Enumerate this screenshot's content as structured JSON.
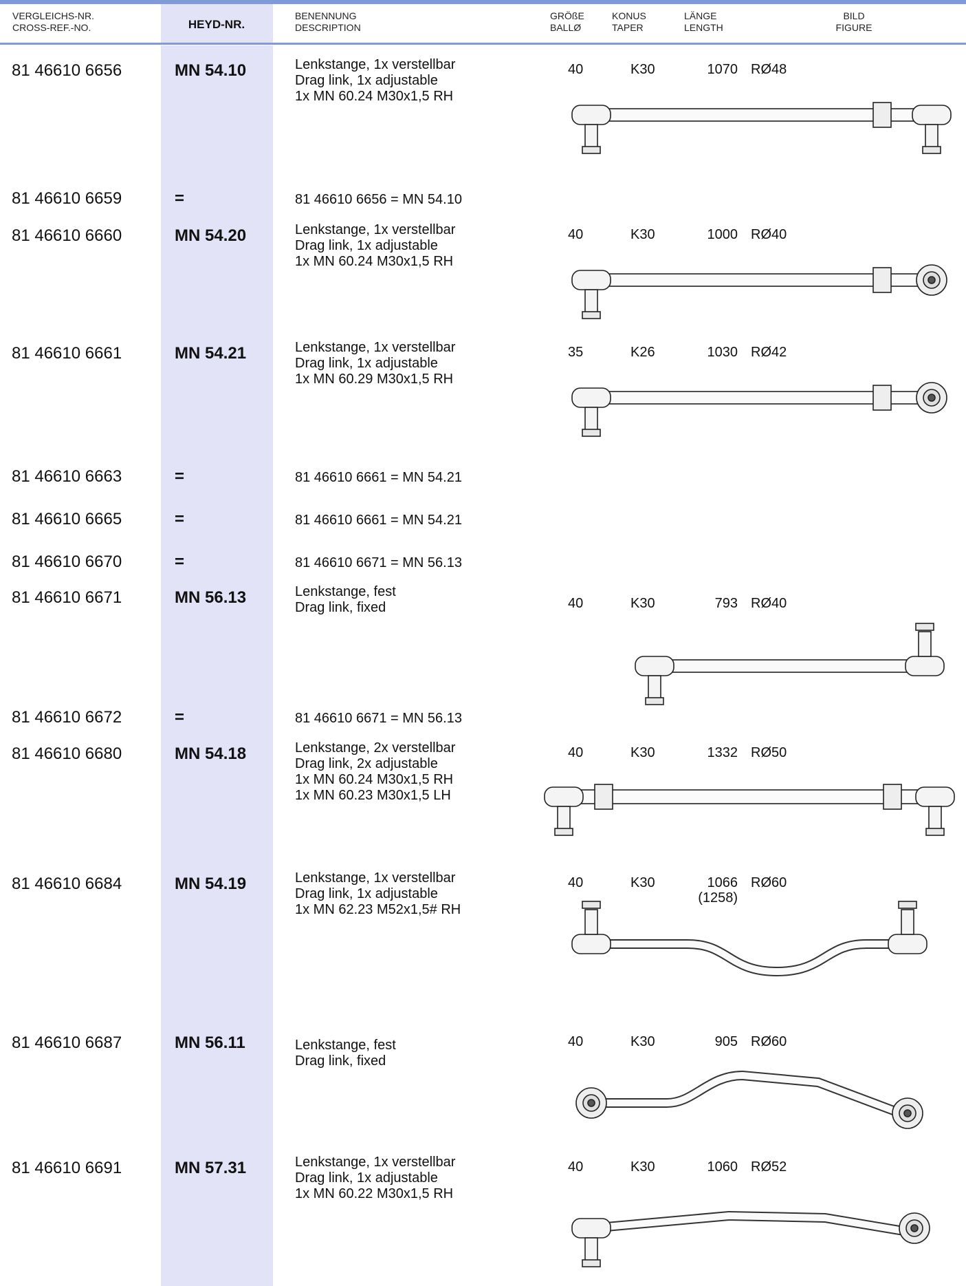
{
  "header": {
    "cross_ref": [
      "VERGLEICHS-NR.",
      "CROSS-REF.-NO."
    ],
    "heyd": "HEYD-NR.",
    "description": [
      "BENENNUNG",
      "DESCRIPTION"
    ],
    "size": [
      "GRÖßE",
      "BALLØ"
    ],
    "taper": [
      "KONUS",
      "TAPER"
    ],
    "length": [
      "LÄNGE",
      "LENGTH"
    ],
    "figure": [
      "BILD",
      "FIGURE"
    ]
  },
  "rows": [
    {
      "ref": "81 46610 6656",
      "heyd": "MN 54.10",
      "description": [
        "Lenkstange, 1x verstellbar",
        "Drag link, 1x adjustable",
        "1x MN 60.24 M30x1,5 RH"
      ],
      "size": "40",
      "taper": "K30",
      "length": [
        "1070"
      ],
      "rod": "RØ48"
    },
    {
      "ref": "81 46610 6659",
      "heyd": "=",
      "description": [
        "81 46610 6656 = MN 54.10"
      ]
    },
    {
      "ref": "81 46610 6660",
      "heyd": "MN 54.20",
      "description": [
        "Lenkstange, 1x verstellbar",
        "Drag link, 1x adjustable",
        "1x MN 60.24 M30x1,5 RH"
      ],
      "size": "40",
      "taper": "K30",
      "length": [
        "1000"
      ],
      "rod": "RØ40"
    },
    {
      "ref": "81 46610 6661",
      "heyd": "MN 54.21",
      "description": [
        "Lenkstange, 1x verstellbar",
        "Drag link, 1x adjustable",
        "1x MN 60.29 M30x1,5 RH"
      ],
      "size": "35",
      "taper": "K26",
      "length": [
        "1030"
      ],
      "rod": "RØ42"
    },
    {
      "ref": "81 46610 6663",
      "heyd": "=",
      "description": [
        "81 46610 6661 = MN 54.21"
      ]
    },
    {
      "ref": "81 46610 6665",
      "heyd": "=",
      "description": [
        "81 46610 6661 = MN 54.21"
      ]
    },
    {
      "ref": "81 46610 6670",
      "heyd": "=",
      "description": [
        "81 46610 6671 = MN 56.13"
      ]
    },
    {
      "ref": "81 46610 6671",
      "heyd": "MN 56.13",
      "description": [
        "Lenkstange, fest",
        "Drag link, fixed"
      ],
      "size": "40",
      "taper": "K30",
      "length": [
        "793"
      ],
      "rod": "RØ40"
    },
    {
      "ref": "81 46610 6672",
      "heyd": "=",
      "description": [
        "81 46610 6671 = MN 56.13"
      ]
    },
    {
      "ref": "81 46610 6680",
      "heyd": "MN 54.18",
      "description": [
        "Lenkstange, 2x verstellbar",
        "Drag link, 2x adjustable",
        "1x MN 60.24 M30x1,5 RH",
        "1x MN 60.23 M30x1,5 LH"
      ],
      "size": "40",
      "taper": "K30",
      "length": [
        "1332"
      ],
      "rod": "RØ50"
    },
    {
      "ref": "81 46610 6684",
      "heyd": "MN 54.19",
      "description": [
        "Lenkstange, 1x verstellbar",
        "Drag link, 1x adjustable",
        "1x MN 62.23 M52x1,5# RH"
      ],
      "size": "40",
      "taper": "K30",
      "length": [
        "1066",
        "(1258)"
      ],
      "rod": "RØ60"
    },
    {
      "ref": "81 46610 6687",
      "heyd": "MN 56.11",
      "description": [
        "Lenkstange, fest",
        "Drag link, fixed"
      ],
      "size": "40",
      "taper": "K30",
      "length": [
        "905"
      ],
      "rod": "RØ60"
    },
    {
      "ref": "81 46610 6691",
      "heyd": "MN 57.31",
      "description": [
        "Lenkstange, 1x verstellbar",
        "Drag link, 1x adjustable",
        "1x MN 60.22 M30x1,5 RH"
      ],
      "size": "40",
      "taper": "K30",
      "length": [
        "1060"
      ],
      "rod": "RØ52"
    }
  ]
}
